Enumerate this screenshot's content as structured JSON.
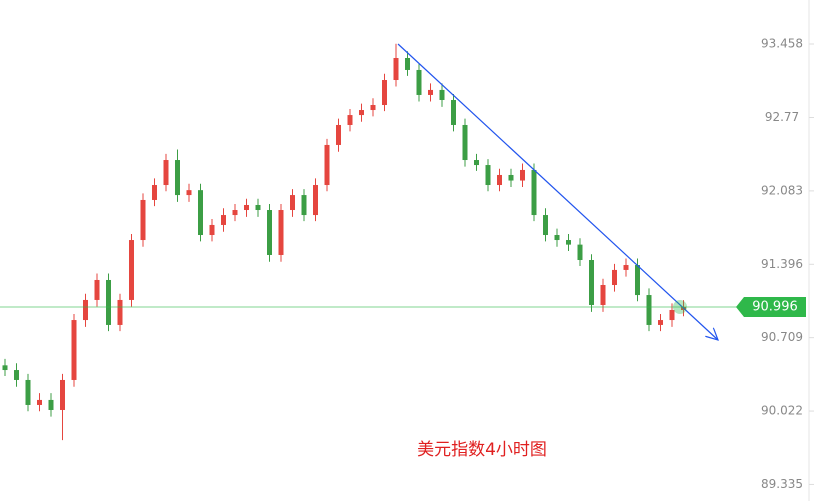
{
  "chart_data": {
    "type": "candlestick",
    "annotation": "美元指数4小时图",
    "open": [
      90.45,
      90.406,
      90.313,
      90.079,
      90.126,
      90.032,
      90.313,
      90.874,
      91.062,
      91.249,
      90.828,
      91.062,
      91.623,
      91.998,
      92.138,
      92.372,
      92.044,
      92.09,
      91.67,
      91.764,
      91.857,
      91.904,
      91.951,
      91.904,
      91.483,
      91.904,
      92.044,
      91.857,
      92.138,
      92.513,
      92.7,
      92.793,
      92.84,
      92.887,
      93.121,
      93.327,
      93.215,
      92.981,
      93.028,
      92.934,
      92.7,
      92.372,
      92.325,
      92.138,
      92.232,
      92.18,
      92.279,
      91.857,
      91.67,
      91.623,
      91.58,
      91.436,
      91.015,
      91.202,
      91.343,
      91.389,
      91.108,
      90.828,
      90.874,
      90.968
    ],
    "high": [
      90.51,
      90.47,
      90.37,
      90.19,
      90.19,
      90.37,
      90.93,
      91.12,
      91.31,
      91.31,
      91.12,
      91.68,
      92.06,
      92.2,
      92.43,
      92.47,
      92.15,
      92.15,
      91.82,
      91.92,
      91.96,
      92.01,
      92.01,
      91.96,
      91.96,
      92.1,
      92.1,
      92.2,
      92.57,
      92.76,
      92.85,
      92.9,
      92.95,
      93.18,
      93.46,
      93.39,
      93.27,
      93.09,
      93.09,
      92.99,
      92.76,
      92.43,
      92.38,
      92.29,
      92.29,
      92.34,
      92.34,
      91.92,
      91.73,
      91.68,
      91.64,
      91.49,
      91.26,
      91.4,
      91.45,
      91.45,
      91.17,
      90.93,
      91.03,
      91.06
    ],
    "low": [
      90.35,
      90.25,
      90.02,
      90.02,
      89.97,
      89.75,
      90.25,
      90.81,
      91.0,
      90.77,
      90.77,
      91.0,
      91.56,
      91.94,
      92.08,
      91.98,
      91.98,
      91.61,
      91.61,
      91.7,
      91.8,
      91.84,
      91.84,
      91.42,
      91.42,
      91.84,
      91.8,
      91.8,
      92.08,
      92.45,
      92.64,
      92.73,
      92.78,
      92.83,
      93.06,
      93.16,
      92.92,
      92.92,
      92.87,
      92.64,
      92.31,
      92.27,
      92.08,
      92.08,
      92.12,
      92.12,
      91.8,
      91.61,
      91.56,
      91.52,
      91.38,
      90.95,
      90.95,
      91.14,
      91.28,
      91.05,
      90.77,
      90.77,
      90.81,
      90.91
    ],
    "close": [
      90.406,
      90.313,
      90.079,
      90.126,
      90.032,
      90.313,
      90.874,
      91.062,
      91.249,
      90.828,
      91.062,
      91.623,
      91.998,
      92.138,
      92.372,
      92.044,
      92.09,
      91.67,
      91.764,
      91.857,
      91.904,
      91.951,
      91.904,
      91.483,
      91.904,
      92.044,
      91.857,
      92.138,
      92.513,
      92.7,
      92.793,
      92.84,
      92.887,
      93.121,
      93.327,
      93.215,
      92.981,
      93.028,
      92.934,
      92.7,
      92.372,
      92.325,
      92.138,
      92.232,
      92.18,
      92.279,
      91.857,
      91.67,
      91.623,
      91.58,
      91.436,
      91.015,
      91.202,
      91.343,
      91.389,
      91.108,
      90.828,
      90.874,
      90.968,
      90.996
    ],
    "up_color": "#e5463f",
    "down_color": "#3c9e45",
    "current_price": 90.996,
    "current_price_color": "#2fb84a",
    "ylim": [
      89.18,
      93.87
    ],
    "yticks": [
      89.335,
      90.022,
      90.709,
      91.396,
      92.083,
      92.77,
      {
        "value": 92.77,
        "label": "92.770"
      },
      93.458
    ],
    "trendline_color": "#2255ee"
  }
}
